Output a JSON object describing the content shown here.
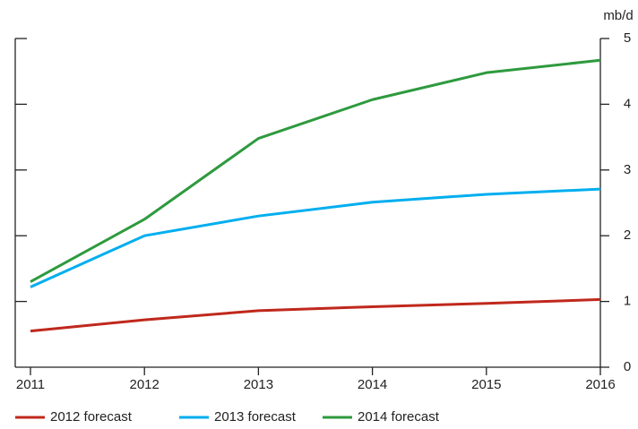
{
  "chart_data": {
    "type": "line",
    "y_label": "mb/d",
    "x": [
      2011,
      2012,
      2013,
      2014,
      2015,
      2016
    ],
    "xlim": [
      2011,
      2016
    ],
    "xticks": [
      2011,
      2012,
      2013,
      2014,
      2015,
      2016
    ],
    "ylim": [
      0,
      5
    ],
    "yticks": [
      0,
      1,
      2,
      3,
      4,
      5
    ],
    "grid": false,
    "series": [
      {
        "name": "2012 forecast",
        "color": "#c0281c",
        "values": [
          0.55,
          0.72,
          0.86,
          0.92,
          0.97,
          1.03
        ]
      },
      {
        "name": "2013 forecast",
        "color": "#00aeef",
        "values": [
          1.22,
          2.0,
          2.3,
          2.51,
          2.63,
          2.71
        ]
      },
      {
        "name": "2014 forecast",
        "color": "#2e9a3e",
        "values": [
          1.3,
          2.25,
          3.48,
          4.07,
          4.48,
          4.67
        ]
      }
    ]
  }
}
